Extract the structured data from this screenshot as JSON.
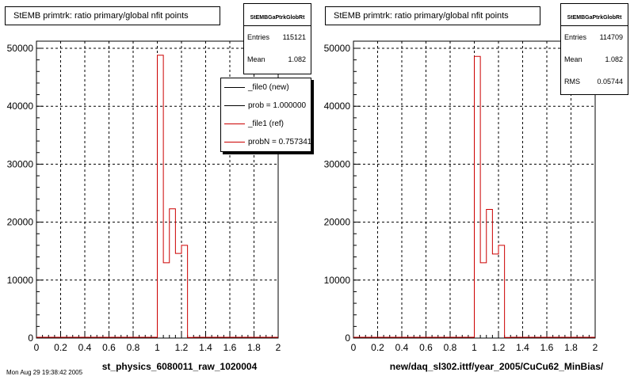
{
  "panels": [
    {
      "title": "StEMB primtrk: ratio primary/global nfit points",
      "stats": {
        "name": "StEMBGaPtrkGlobRt",
        "rows": [
          {
            "label": "Entries",
            "value": "115121"
          },
          {
            "label": "Mean",
            "value": "1.082"
          }
        ]
      },
      "xlabel": "st_physics_6080011_raw_1020004"
    },
    {
      "title": "StEMB primtrk: ratio primary/global nfit points",
      "stats": {
        "name": "StEMBGaPtrkGlobRt",
        "rows": [
          {
            "label": "Entries",
            "value": "114709"
          },
          {
            "label": "Mean",
            "value": "1.082"
          },
          {
            "label": "RMS",
            "value": "0.05744"
          }
        ]
      },
      "xlabel": "new/daq_sl302.ittf/year_2005/CuCu62_MinBias/"
    }
  ],
  "legend": [
    {
      "label": "_file0 (new)",
      "color": "#000000"
    },
    {
      "label": "prob = 1.000000",
      "color": "#000000"
    },
    {
      "label": "_file1 (ref)",
      "color": "#cc0000"
    },
    {
      "label": "probN = 0.757341",
      "color": "#cc0000"
    }
  ],
  "footer": "Mon Aug 29 19:38:42 2005",
  "colors": {
    "ref": "#cc0000",
    "new": "#000000",
    "grid": "#000000"
  },
  "chart_data": [
    {
      "type": "bar",
      "x_tick_labels": [
        "0",
        "0.2",
        "0.4",
        "0.6",
        "0.8",
        "1",
        "1.2",
        "1.4",
        "1.6",
        "1.8",
        "2"
      ],
      "y_tick_labels": [
        "0",
        "10000",
        "20000",
        "30000",
        "40000",
        "50000"
      ],
      "xlim": [
        0,
        2
      ],
      "ylim": [
        0,
        50000
      ],
      "grid": true,
      "bin_width": 0.05,
      "bins": [
        {
          "x": 1.0,
          "value": 48800
        },
        {
          "x": 1.05,
          "value": 13000
        },
        {
          "x": 1.1,
          "value": 22300
        },
        {
          "x": 1.15,
          "value": 14600
        },
        {
          "x": 1.2,
          "value": 16000
        },
        {
          "x": 1.25,
          "value": 100
        }
      ]
    },
    {
      "type": "bar",
      "x_tick_labels": [
        "0",
        "0.2",
        "0.4",
        "0.6",
        "0.8",
        "1",
        "1.2",
        "1.4",
        "1.6",
        "1.8",
        "2"
      ],
      "y_tick_labels": [
        "0",
        "10000",
        "20000",
        "30000",
        "40000",
        "50000"
      ],
      "xlim": [
        0,
        2
      ],
      "ylim": [
        0,
        50000
      ],
      "grid": true,
      "bin_width": 0.05,
      "bins": [
        {
          "x": 1.0,
          "value": 48600
        },
        {
          "x": 1.05,
          "value": 13000
        },
        {
          "x": 1.1,
          "value": 22200
        },
        {
          "x": 1.15,
          "value": 14500
        },
        {
          "x": 1.2,
          "value": 16000
        },
        {
          "x": 1.25,
          "value": 100
        }
      ]
    }
  ]
}
